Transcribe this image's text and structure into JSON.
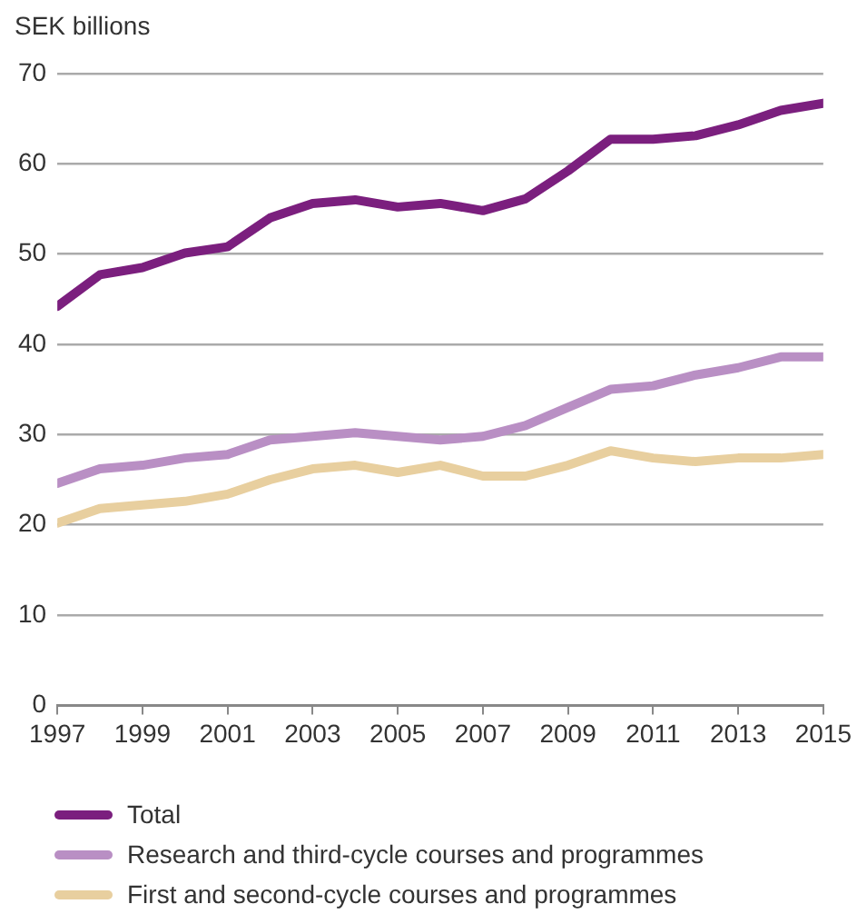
{
  "chart_data": {
    "type": "line",
    "ylabel": "SEK billions",
    "x": [
      1997,
      1998,
      1999,
      2000,
      2001,
      2002,
      2003,
      2004,
      2005,
      2006,
      2007,
      2008,
      2009,
      2010,
      2011,
      2012,
      2013,
      2014,
      2015
    ],
    "xlim": [
      1997,
      2015
    ],
    "xticks": [
      1997,
      1999,
      2001,
      2003,
      2005,
      2007,
      2009,
      2011,
      2013,
      2015
    ],
    "ylim": [
      0,
      70
    ],
    "yticks": [
      0,
      10,
      20,
      30,
      40,
      50,
      60,
      70
    ],
    "grid": "y",
    "legend": "bottom",
    "marker": "none",
    "line_style": "solid",
    "series": [
      {
        "name": "Total",
        "color": "#7b1f7e",
        "values": [
          44.2,
          47.7,
          48.5,
          50.1,
          50.8,
          54.0,
          55.6,
          56.0,
          55.2,
          55.6,
          54.8,
          56.1,
          59.2,
          62.7,
          62.7,
          63.1,
          64.3,
          65.9,
          66.7
        ]
      },
      {
        "name": "Research and third-cycle courses and programmes",
        "color": "#b98fc4",
        "values": [
          24.6,
          26.2,
          26.6,
          27.4,
          27.8,
          29.4,
          29.8,
          30.2,
          29.8,
          29.4,
          29.8,
          31.0,
          33.0,
          35.0,
          35.4,
          36.6,
          37.4,
          38.6,
          38.6
        ]
      },
      {
        "name": "First and second-cycle courses and programmes",
        "color": "#e8cf9f",
        "values": [
          20.2,
          21.8,
          22.2,
          22.6,
          23.4,
          25.0,
          26.2,
          26.6,
          25.8,
          26.6,
          25.4,
          25.4,
          26.6,
          28.2,
          27.4,
          27.0,
          27.4,
          27.4,
          27.8
        ]
      }
    ]
  }
}
